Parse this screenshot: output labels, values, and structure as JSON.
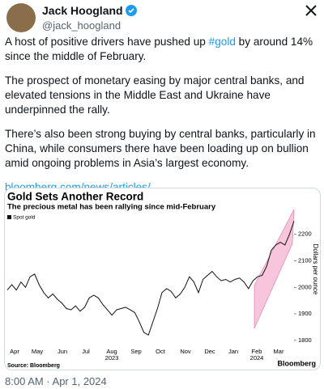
{
  "tweet": {
    "name": "Jack Hoogland",
    "handle": "@jack_hoogland",
    "intro": {
      "before": "A host of positive drivers have pushed up ",
      "hashtag": "#gold",
      "after": " by around 14% since the middle of February."
    },
    "paragraphs": [
      "The prospect of monetary easing by major central banks, and elevated tensions in the Middle East and Ukraine have underpinned the rally.",
      "There’s also been strong buying by central banks, particularly in China, while consumers there have been loading up on bullion amid ongoing problems in Asia’s largest economy."
    ],
    "link": "bloomberg.com/news/articles/...",
    "timestamp": "8:00 AM · Apr 1, 2024"
  },
  "chart_data": {
    "type": "line",
    "title": "Gold Sets Another Record",
    "subtitle": "The precious metal has been rallying since mid-February",
    "y_label": "Dollars per ounce",
    "series": [
      {
        "name": "Spot gold",
        "color": "#111111",
        "values": [
          1990,
          2010,
          1990,
          2020,
          2000,
          2040,
          2050,
          2010,
          1980,
          1960,
          1975,
          1955,
          1940,
          1920,
          1915,
          1930,
          1910,
          1925,
          1960,
          1970,
          1960,
          1935,
          1915,
          1895,
          1915,
          1920,
          1925,
          1915,
          1905,
          1870,
          1830,
          1820,
          1870,
          1920,
          1980,
          1995,
          1985,
          1960,
          1975,
          2000,
          2040,
          2020,
          1980,
          2030,
          2045,
          2060,
          2040,
          2025,
          2030,
          2020,
          2030,
          2035,
          2020,
          1995,
          2025,
          2040,
          2045,
          2080,
          2140,
          2160,
          2170,
          2160,
          2200,
          2250
        ]
      }
    ],
    "months": [
      "Apr",
      "May",
      "Jun",
      "Jul",
      "Aug",
      "Sep",
      "Oct",
      "Nov",
      "Dec",
      "Jan",
      "Feb",
      "Mar"
    ],
    "years": [
      "2023",
      "2024"
    ],
    "ylim": [
      1775,
      2300
    ],
    "yticks": [
      1800,
      1900,
      2000,
      2100,
      2200
    ],
    "source": "Source: Bloomberg",
    "brand": "Bloomberg"
  }
}
